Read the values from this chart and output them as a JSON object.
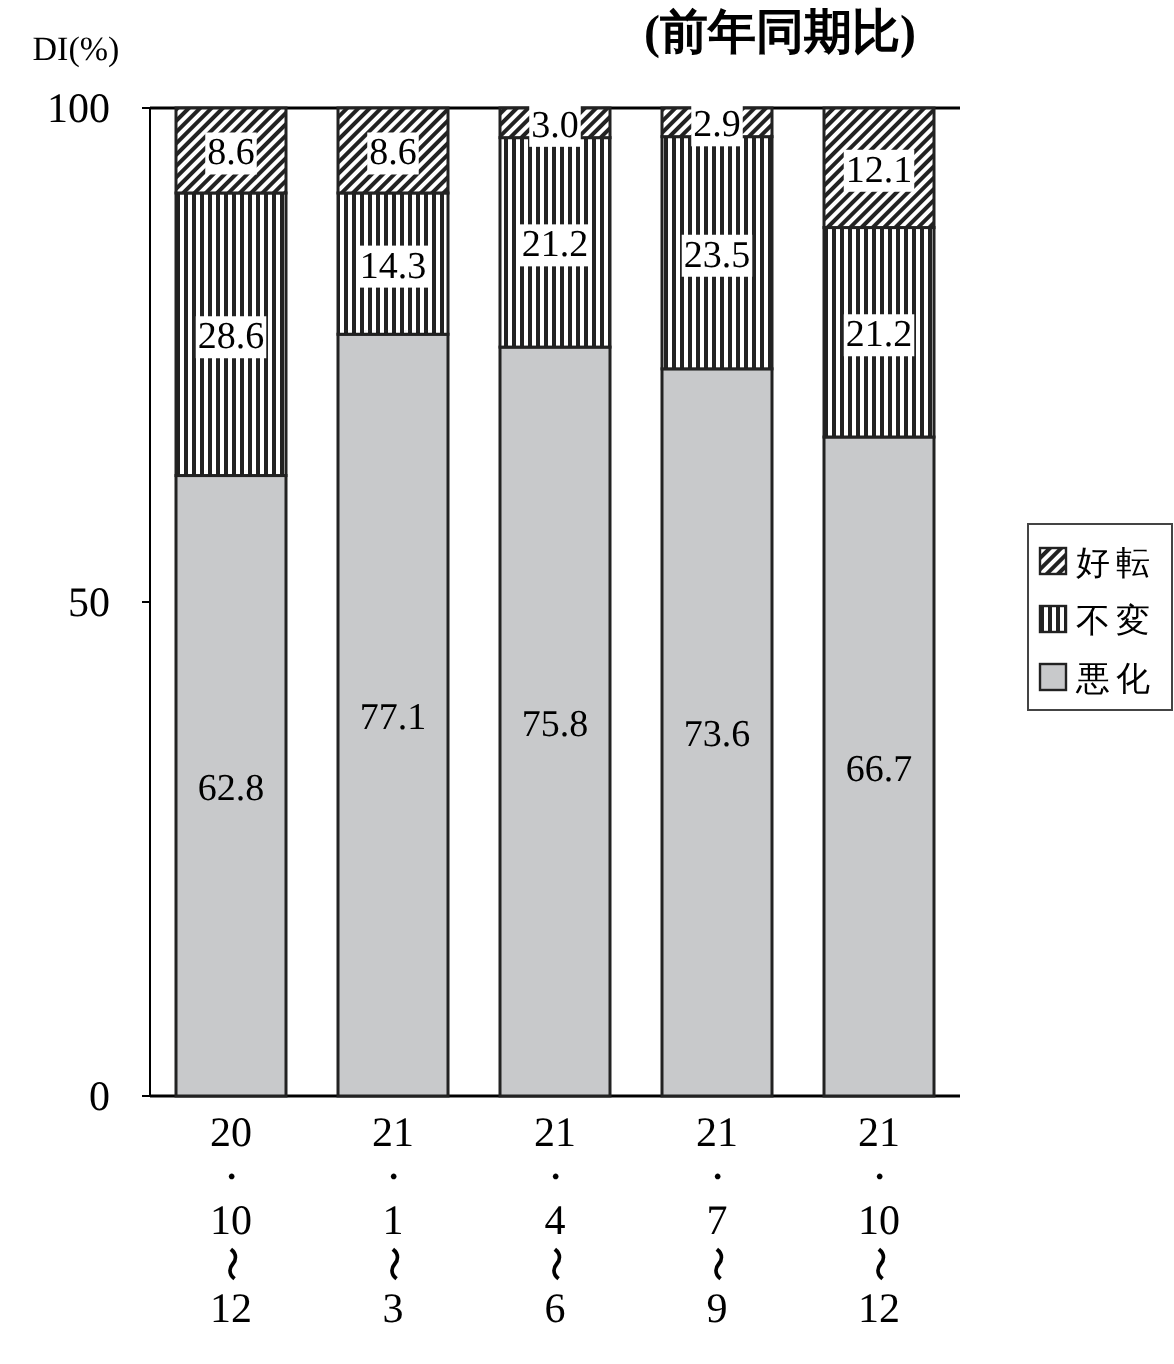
{
  "chart_data": {
    "type": "bar",
    "stacked": true,
    "title": "(前年同期比)",
    "ylabel": "DI(%)",
    "categories": [
      "20・10〜12",
      "21・1〜3",
      "21・4〜6",
      "21・7〜9",
      "21・10〜12"
    ],
    "ylim": [
      0,
      100
    ],
    "yticks": [
      0,
      50,
      100
    ],
    "grid": false,
    "legend": "right",
    "series": [
      {
        "name": "悪化",
        "color": "#c8c9cb",
        "values": [
          62.8,
          77.1,
          75.8,
          73.6,
          66.7
        ],
        "value_labels": [
          "62.8",
          "77.1",
          "75.8",
          "73.6",
          "66.7"
        ]
      },
      {
        "name": "不変",
        "color": "#222222",
        "values": [
          28.6,
          14.3,
          21.2,
          23.5,
          21.2
        ],
        "value_labels": [
          "28.6",
          "14.3",
          "21.2",
          "23.5",
          "21.2"
        ]
      },
      {
        "name": "好転",
        "color": "#222222",
        "values": [
          8.6,
          8.6,
          3.0,
          2.9,
          12.1
        ],
        "value_labels": [
          "8.6",
          "8.6",
          "3.0",
          "2.9",
          "12.1"
        ]
      }
    ]
  }
}
